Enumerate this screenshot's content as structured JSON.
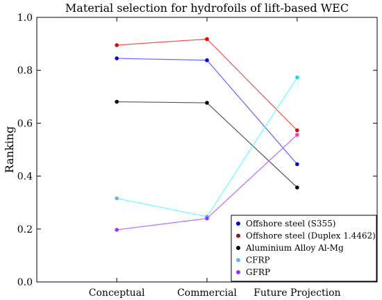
{
  "chart_data": {
    "type": "line",
    "title": "Material selection for hydrofoils of lift-based WEC",
    "xlabel": "",
    "ylabel": "Ranking",
    "categories": [
      "Conceptual",
      "Commercial",
      "Future Projection"
    ],
    "ylim": [
      0,
      1
    ],
    "yticks": [
      0.0,
      0.2,
      0.4,
      0.6,
      0.8,
      1.0
    ],
    "ytick_labels": [
      "0.0",
      "0.2",
      "0.4",
      "0.6",
      "0.8",
      "1.0"
    ],
    "grid": false,
    "legend_position": "bottom-right",
    "series": [
      {
        "name": "Offshore steel (S355)",
        "line_color": "#6464ff",
        "marker_color": "#0000cc",
        "legend_color": "#0000cc",
        "values": [
          0.845,
          0.838,
          0.445
        ]
      },
      {
        "name": "Offshore steel (Duplex 1.4462)",
        "line_color": "#ff4c4c",
        "marker_color": "#e00000",
        "legend_color": "#8b1a1a",
        "values": [
          0.895,
          0.918,
          0.573
        ]
      },
      {
        "name": "Aluminium Alloy Al-Mg",
        "line_color": "#555555",
        "marker_color": "#000000",
        "legend_color": "#000000",
        "values": [
          0.681,
          0.677,
          0.357
        ]
      },
      {
        "name": "CFRP",
        "line_color": "#66ffff",
        "marker_color": "#6fb3e0",
        "legend_color": "#6fb3e0",
        "values": [
          0.316,
          0.247,
          0.773
        ]
      },
      {
        "name": "GFRP",
        "line_color": "#bb66ff",
        "marker_color": "#9933ff",
        "legend_color": "#9933ff",
        "values": [
          0.197,
          0.24,
          0.556
        ]
      }
    ],
    "final_marker_colors": [
      "#0000cc",
      "#e00000",
      "#000000",
      "#00e5ff",
      "#ff33cc"
    ]
  }
}
